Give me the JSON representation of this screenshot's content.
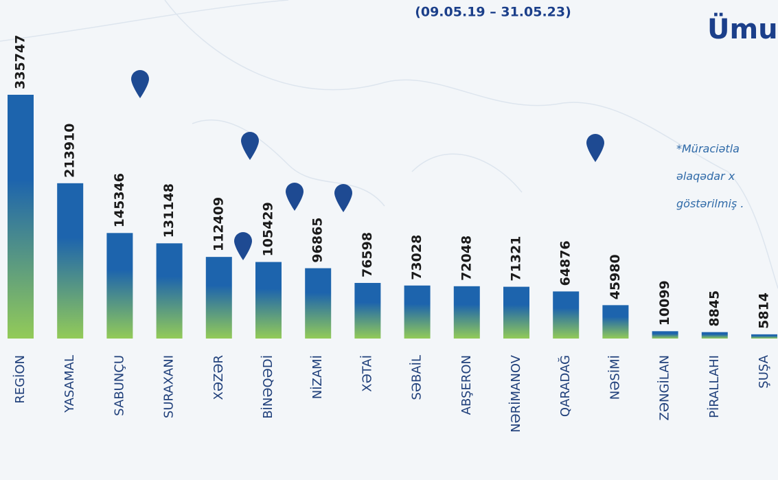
{
  "chart_data": {
    "type": "bar",
    "title": "Ümu",
    "subtitle": "(09.05.19 – 31.05.23)",
    "note": [
      "*Müraciətla",
      "əlaqədar x",
      "göstərilmiş ."
    ],
    "categories": [
      "REGİON",
      "YASAMAL",
      "SABUNÇU",
      "SURAXANI",
      "XƏZƏR",
      "BİNƏQƏDİ",
      "NİZAMİ",
      "XƏTAİ",
      "SƏBAİL",
      "ABŞERON",
      "NƏRİMANOV",
      "QARADAĞ",
      "NƏSİMİ",
      "ZƏNGİLAN",
      "PİRALLAHI",
      "ŞUŞA"
    ],
    "values": [
      335747,
      213910,
      145346,
      131148,
      112409,
      105429,
      96865,
      76598,
      73028,
      72048,
      71321,
      64876,
      45980,
      10099,
      8845,
      5814
    ],
    "color_top": "#1d64ad",
    "color_bottom": "#93cb58"
  }
}
